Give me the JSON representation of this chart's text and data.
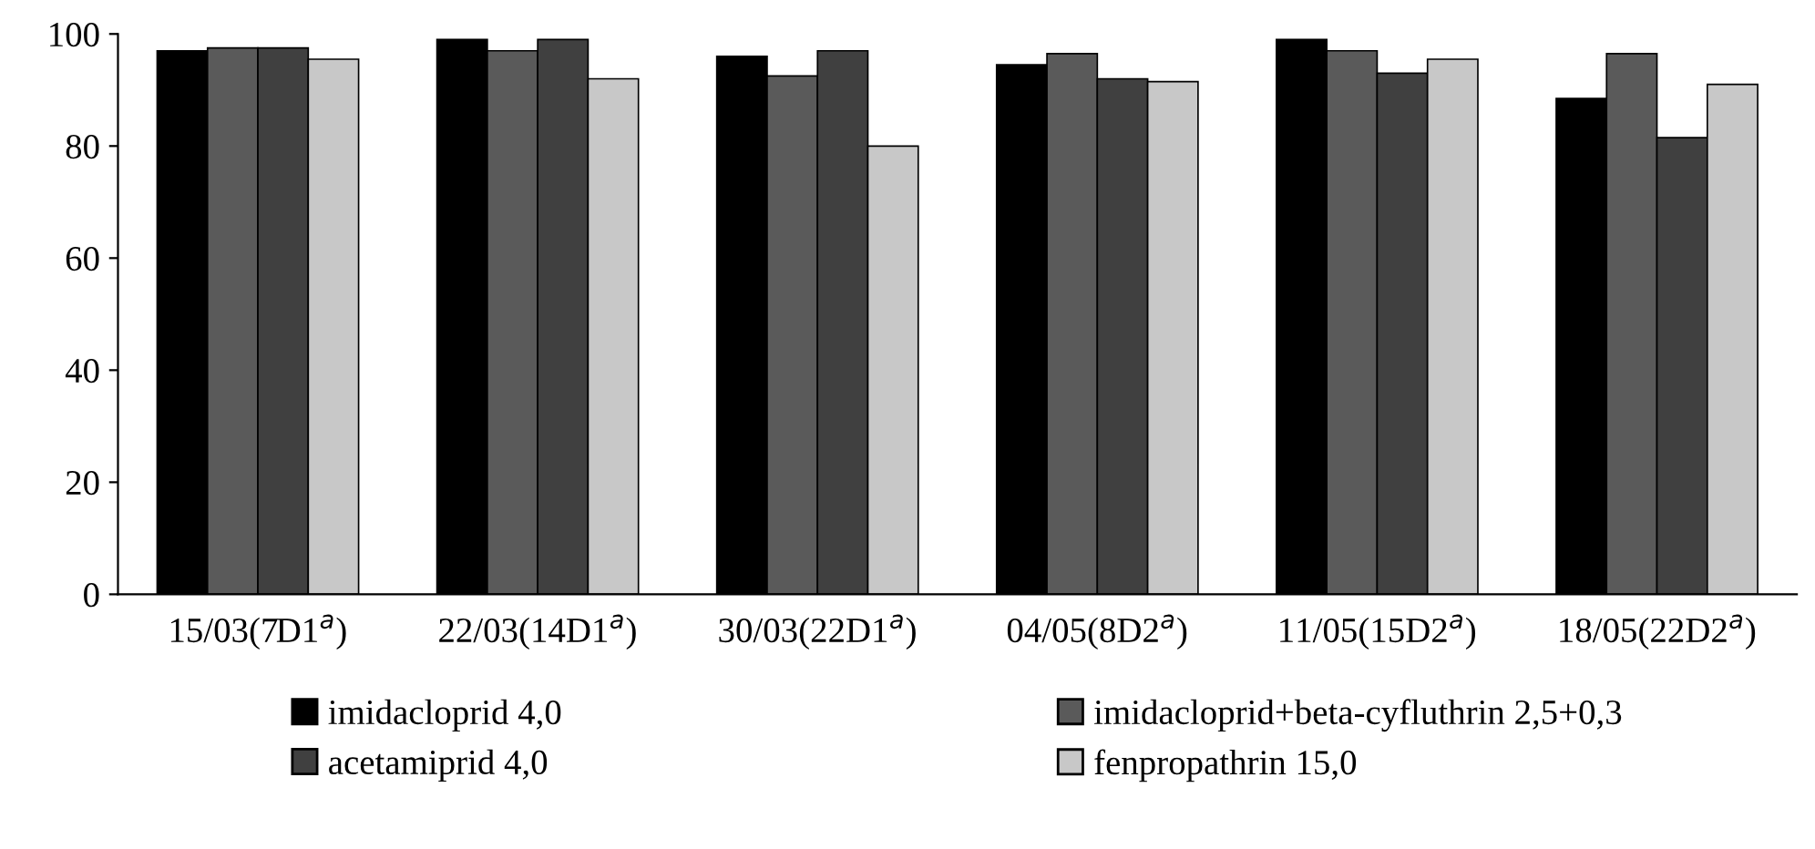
{
  "chart_data": {
    "type": "bar",
    "categories": [
      "15/03(7D1$^{a}$)",
      "22/03(14D1$^{a}$)",
      "30/03(22D1$^{a}$)",
      "04/05(8D2$^{a}$)",
      "11/05(15D2$^{a}$)",
      "18/05(22D2$^{a}$)"
    ],
    "series": [
      {
        "name": "imidacloprid 4,0",
        "color": "#000000",
        "values": [
          97,
          99,
          96,
          94.5,
          99,
          88.5
        ]
      },
      {
        "name": "imidacloprid+beta-cyfluthrin 2,5+0,3",
        "color": "#5a5a5a",
        "values": [
          97.5,
          97,
          92.5,
          96.5,
          97,
          96.5
        ]
      },
      {
        "name": "acetamiprid 4,0",
        "color": "#404040",
        "values": [
          97.5,
          99,
          97,
          92,
          93,
          81.5
        ]
      },
      {
        "name": "fenpropathrin 15,0",
        "color": "#c8c8c8",
        "values": [
          95.5,
          92,
          80,
          91.5,
          95.5,
          91
        ]
      }
    ],
    "ylim": [
      0,
      100
    ],
    "yticks": [
      0,
      20,
      40,
      60,
      80,
      100
    ],
    "grid": false,
    "legend": "bottom"
  }
}
